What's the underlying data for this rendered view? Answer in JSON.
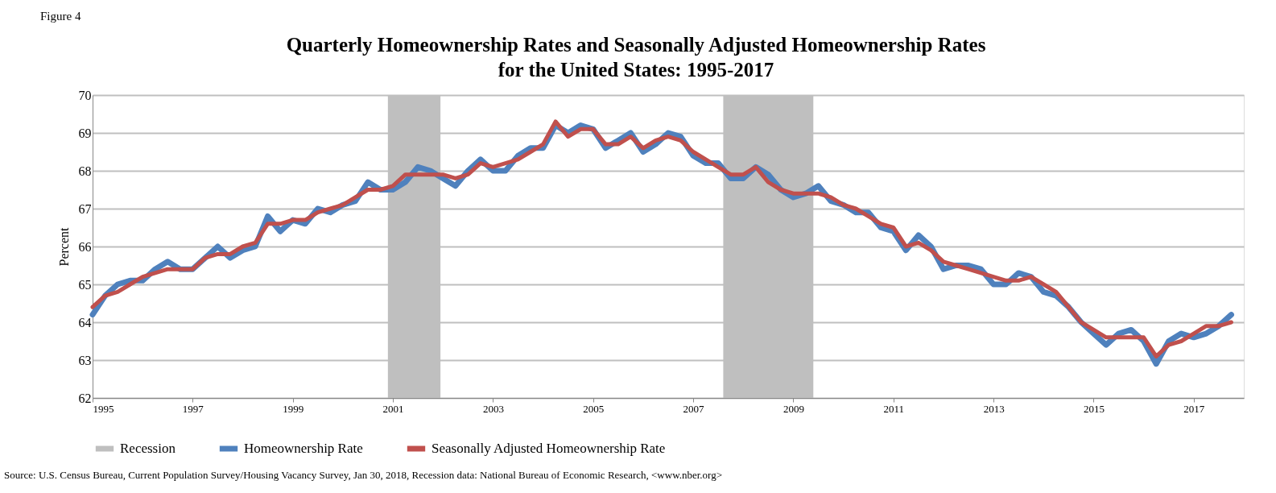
{
  "chart_data": {
    "type": "line",
    "title": "Quarterly Homeownership Rates and Seasonally Adjusted Homeownership Rates\nfor the United States: 1995-2017",
    "ylabel": "Percent",
    "annotations": [
      "Figure 4",
      "Source: U.S. Census Bureau, Current Population Survey/Housing Vacancy Survey, Jan 30, 2018, Recession data: National Bureau of Economic Research, <www.nber.org>"
    ],
    "x": [
      1995,
      1995.25,
      1995.5,
      1995.75,
      1996,
      1996.25,
      1996.5,
      1996.75,
      1997,
      1997.25,
      1997.5,
      1997.75,
      1998,
      1998.25,
      1998.5,
      1998.75,
      1999,
      1999.25,
      1999.5,
      1999.75,
      2000,
      2000.25,
      2000.5,
      2000.75,
      2001,
      2001.25,
      2001.5,
      2001.75,
      2002,
      2002.25,
      2002.5,
      2002.75,
      2003,
      2003.25,
      2003.5,
      2003.75,
      2004,
      2004.25,
      2004.5,
      2004.75,
      2005,
      2005.25,
      2005.5,
      2005.75,
      2006,
      2006.25,
      2006.5,
      2006.75,
      2007,
      2007.25,
      2007.5,
      2007.75,
      2008,
      2008.25,
      2008.5,
      2008.75,
      2009,
      2009.25,
      2009.5,
      2009.75,
      2010,
      2010.25,
      2010.5,
      2010.75,
      2011,
      2011.25,
      2011.5,
      2011.75,
      2012,
      2012.25,
      2012.5,
      2012.75,
      2013,
      2013.25,
      2013.5,
      2013.75,
      2014,
      2014.25,
      2014.5,
      2014.75,
      2015,
      2015.25,
      2015.5,
      2015.75,
      2016,
      2016.25,
      2016.5,
      2016.75,
      2017,
      2017.25,
      2017.5,
      2017.75
    ],
    "series": [
      {
        "name": "Homeownership Rate",
        "color": "#4f81bd",
        "values": [
          64.2,
          64.7,
          65.0,
          65.1,
          65.1,
          65.4,
          65.6,
          65.4,
          65.4,
          65.7,
          66.0,
          65.7,
          65.9,
          66.0,
          66.8,
          66.4,
          66.7,
          66.6,
          67.0,
          66.9,
          67.1,
          67.2,
          67.7,
          67.5,
          67.5,
          67.7,
          68.1,
          68.0,
          67.8,
          67.6,
          68.0,
          68.3,
          68.0,
          68.0,
          68.4,
          68.6,
          68.6,
          69.2,
          69.0,
          69.2,
          69.1,
          68.6,
          68.8,
          69.0,
          68.5,
          68.7,
          69.0,
          68.9,
          68.4,
          68.2,
          68.2,
          67.8,
          67.8,
          68.1,
          67.9,
          67.5,
          67.3,
          67.4,
          67.6,
          67.2,
          67.1,
          66.9,
          66.9,
          66.5,
          66.4,
          65.9,
          66.3,
          66.0,
          65.4,
          65.5,
          65.5,
          65.4,
          65.0,
          65.0,
          65.3,
          65.2,
          64.8,
          64.7,
          64.4,
          64.0,
          63.7,
          63.4,
          63.7,
          63.8,
          63.5,
          62.9,
          63.5,
          63.7,
          63.6,
          63.7,
          63.9,
          64.2
        ]
      },
      {
        "name": "Seasonally Adjusted Homeownership Rate",
        "color": "#c0504d",
        "values": [
          64.4,
          64.7,
          64.8,
          65.0,
          65.2,
          65.3,
          65.4,
          65.4,
          65.4,
          65.7,
          65.8,
          65.8,
          66.0,
          66.1,
          66.6,
          66.6,
          66.7,
          66.7,
          66.9,
          67.0,
          67.1,
          67.3,
          67.5,
          67.5,
          67.6,
          67.9,
          67.9,
          67.9,
          67.9,
          67.8,
          67.9,
          68.2,
          68.1,
          68.2,
          68.3,
          68.5,
          68.7,
          69.3,
          68.9,
          69.1,
          69.1,
          68.7,
          68.7,
          68.9,
          68.6,
          68.8,
          68.9,
          68.8,
          68.5,
          68.3,
          68.1,
          67.9,
          67.9,
          68.1,
          67.7,
          67.5,
          67.4,
          67.4,
          67.4,
          67.3,
          67.1,
          67.0,
          66.8,
          66.6,
          66.5,
          66.0,
          66.1,
          65.9,
          65.6,
          65.5,
          65.4,
          65.3,
          65.2,
          65.1,
          65.1,
          65.2,
          65.0,
          64.8,
          64.4,
          64.0,
          63.8,
          63.6,
          63.6,
          63.6,
          63.6,
          63.1,
          63.4,
          63.5,
          63.7,
          63.9,
          63.9,
          64.0
        ]
      }
    ],
    "bands": [
      {
        "axis": "x",
        "from": 2000.9,
        "to": 2001.95,
        "label": "Recession",
        "color": "#bfbfbf"
      },
      {
        "axis": "x",
        "from": 2007.6,
        "to": 2009.4,
        "color": "#bfbfbf"
      }
    ],
    "xlim": [
      1995,
      2018
    ],
    "xticks": [
      1995,
      1997,
      1999,
      2001,
      2003,
      2005,
      2007,
      2009,
      2011,
      2013,
      2015,
      2017
    ],
    "ylim": [
      62,
      70
    ],
    "yticks": [
      62,
      63,
      64,
      65,
      66,
      67,
      68,
      69,
      70
    ],
    "grid": "y",
    "legend": "bottom",
    "line_style": "solid",
    "marker": "none"
  }
}
